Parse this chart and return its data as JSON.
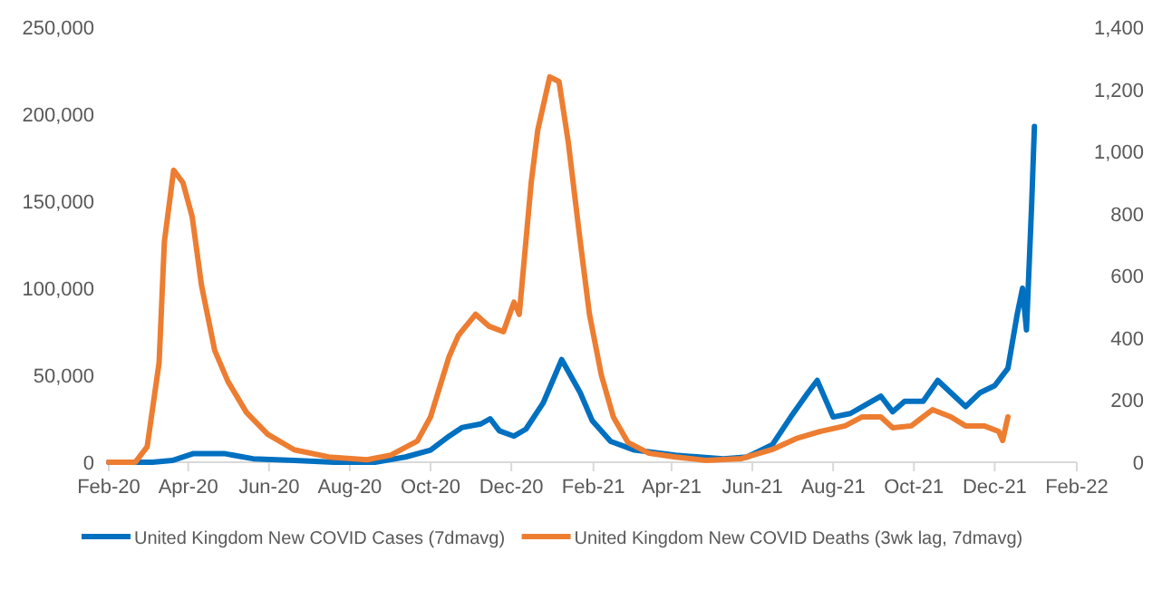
{
  "chart_data": {
    "type": "line",
    "xlim": [
      "2020-02-01",
      "2022-02-01"
    ],
    "xticks": [
      {
        "value": "2020-02-01",
        "label": "Feb-20"
      },
      {
        "value": "2020-04-01",
        "label": "Apr-20"
      },
      {
        "value": "2020-06-01",
        "label": "Jun-20"
      },
      {
        "value": "2020-08-01",
        "label": "Aug-20"
      },
      {
        "value": "2020-10-01",
        "label": "Oct-20"
      },
      {
        "value": "2020-12-01",
        "label": "Dec-20"
      },
      {
        "value": "2021-02-01",
        "label": "Feb-21"
      },
      {
        "value": "2021-04-01",
        "label": "Apr-21"
      },
      {
        "value": "2021-06-01",
        "label": "Jun-21"
      },
      {
        "value": "2021-08-01",
        "label": "Aug-21"
      },
      {
        "value": "2021-10-01",
        "label": "Oct-21"
      },
      {
        "value": "2021-12-01",
        "label": "Dec-21"
      },
      {
        "value": "2022-02-01",
        "label": "Feb-22"
      }
    ],
    "ylim": [
      0,
      250000
    ],
    "yticks": [
      {
        "value": 0,
        "label": "0"
      },
      {
        "value": 50000,
        "label": "50,000"
      },
      {
        "value": 100000,
        "label": "100,000"
      },
      {
        "value": 150000,
        "label": "150,000"
      },
      {
        "value": 200000,
        "label": "200,000"
      },
      {
        "value": 250000,
        "label": "250,000"
      }
    ],
    "y2lim": [
      0,
      1400
    ],
    "y2ticks": [
      {
        "value": 0,
        "label": "0"
      },
      {
        "value": 200,
        "label": "200"
      },
      {
        "value": 400,
        "label": "400"
      },
      {
        "value": 600,
        "label": "600"
      },
      {
        "value": 800,
        "label": "800"
      },
      {
        "value": 1000,
        "label": "1,000"
      },
      {
        "value": 1200,
        "label": "1,200"
      },
      {
        "value": 1400,
        "label": "1,400"
      }
    ],
    "grid": false,
    "legend": "bottom",
    "line_style": "solid",
    "marker": "none",
    "series": [
      {
        "name": "United Kingdom New COVID Cases (7dmavg)",
        "color": "#0070c0",
        "x": [
          "2020-02-01",
          "2020-03-05",
          "2020-03-20",
          "2020-04-05",
          "2020-04-28",
          "2020-05-20",
          "2020-06-20",
          "2020-07-20",
          "2020-08-20",
          "2020-09-12",
          "2020-10-01",
          "2020-10-15",
          "2020-10-25",
          "2020-11-08",
          "2020-11-15",
          "2020-11-22",
          "2020-12-03",
          "2020-12-12",
          "2020-12-25",
          "2021-01-03",
          "2021-01-08",
          "2021-01-22",
          "2021-01-31",
          "2021-02-14",
          "2021-03-04",
          "2021-04-04",
          "2021-05-10",
          "2021-05-28",
          "2021-06-16",
          "2021-06-30",
          "2021-07-13",
          "2021-07-20",
          "2021-08-01",
          "2021-08-14",
          "2021-08-28",
          "2021-09-06",
          "2021-09-15",
          "2021-09-24",
          "2021-10-08",
          "2021-10-19",
          "2021-11-09",
          "2021-11-20",
          "2021-12-01",
          "2021-12-11",
          "2021-12-18",
          "2021-12-22",
          "2021-12-25",
          "2021-12-29",
          "2021-12-31"
        ],
        "values": [
          0,
          0,
          1000,
          5000,
          5000,
          2000,
          1000,
          0,
          0,
          3000,
          7000,
          15000,
          20000,
          22000,
          25000,
          18000,
          15000,
          19000,
          34000,
          50000,
          59000,
          40000,
          24000,
          12000,
          7000,
          4000,
          2000,
          3000,
          10000,
          26000,
          40000,
          47000,
          26000,
          28000,
          34000,
          38000,
          29000,
          35000,
          35000,
          47000,
          32000,
          40000,
          44000,
          54000,
          85000,
          100000,
          76000,
          150000,
          193000
        ]
      },
      {
        "name": "United Kingdom New COVID Deaths (3wk lag, 7dmavg)",
        "color": "#ed7d31",
        "axis": "y2",
        "x": [
          "2020-02-01",
          "2020-02-21",
          "2020-03-01",
          "2020-03-10",
          "2020-03-14",
          "2020-03-21",
          "2020-03-28",
          "2020-04-04",
          "2020-04-11",
          "2020-04-21",
          "2020-05-01",
          "2020-05-15",
          "2020-05-31",
          "2020-06-20",
          "2020-07-16",
          "2020-08-14",
          "2020-09-01",
          "2020-09-21",
          "2020-10-01",
          "2020-10-15",
          "2020-10-22",
          "2020-11-04",
          "2020-11-14",
          "2020-11-25",
          "2020-12-03",
          "2020-12-07",
          "2020-12-16",
          "2020-12-21",
          "2020-12-30",
          "2021-01-06",
          "2021-01-13",
          "2021-01-22",
          "2021-01-29",
          "2021-02-07",
          "2021-02-16",
          "2021-02-27",
          "2021-03-15",
          "2021-04-04",
          "2021-04-27",
          "2021-05-24",
          "2021-06-16",
          "2021-07-04",
          "2021-07-22",
          "2021-08-10",
          "2021-08-23",
          "2021-09-06",
          "2021-09-15",
          "2021-09-29",
          "2021-10-15",
          "2021-10-29",
          "2021-11-09",
          "2021-11-23",
          "2021-12-04",
          "2021-12-07",
          "2021-12-11"
        ],
        "values": [
          0,
          0,
          50,
          320,
          710,
          940,
          900,
          790,
          570,
          360,
          260,
          160,
          90,
          40,
          17,
          8,
          23,
          68,
          146,
          340,
          408,
          476,
          438,
          420,
          515,
          476,
          900,
          1070,
          1240,
          1225,
          1030,
          711,
          476,
          280,
          146,
          64,
          29,
          17,
          6,
          12,
          41,
          76,
          99,
          117,
          146,
          146,
          111,
          117,
          169,
          146,
          117,
          117,
          99,
          70,
          146
        ]
      }
    ]
  }
}
